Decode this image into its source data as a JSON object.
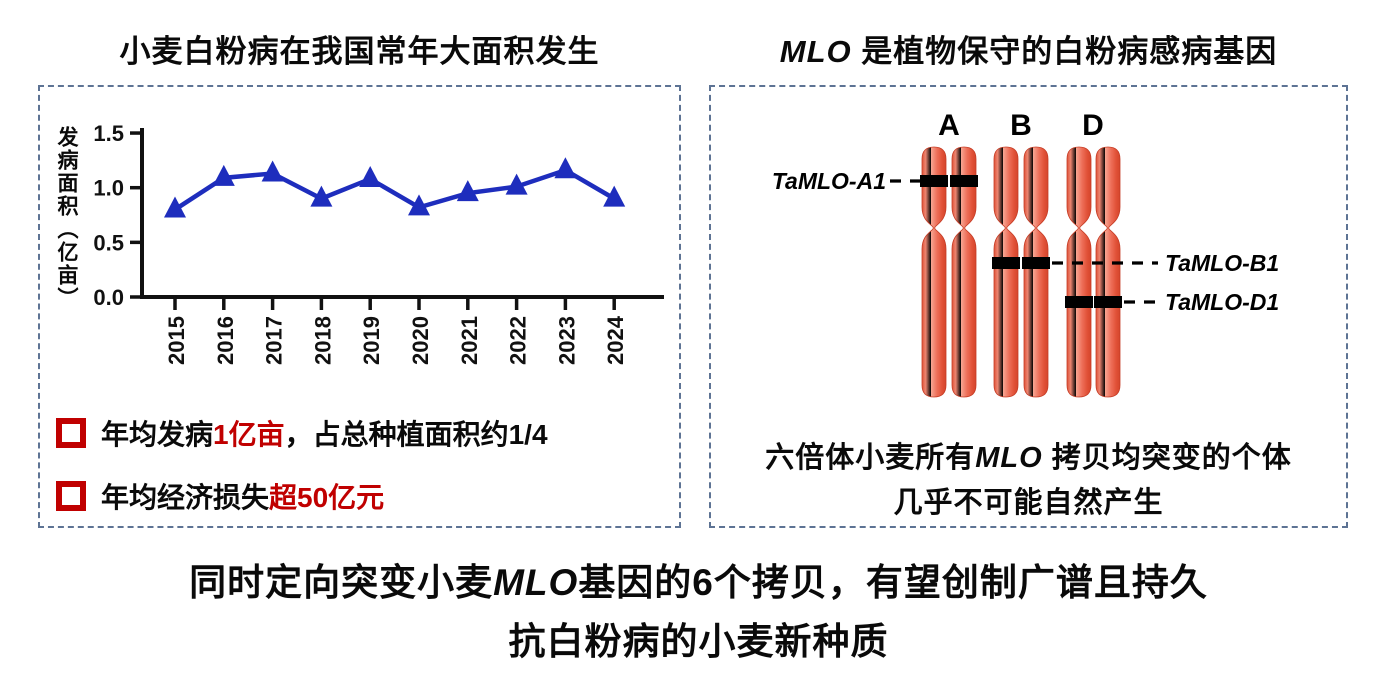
{
  "left_panel": {
    "title": "小麦白粉病在我国常年大面积发生",
    "bullets": [
      {
        "pre": "年均发病",
        "em": "1亿亩",
        "post": "，占总种植面积约1/4"
      },
      {
        "pre": "年均经济损失",
        "em": "超50亿元",
        "post": ""
      }
    ]
  },
  "right_panel": {
    "title_em": "MLO",
    "title_rest": " 是植物保守的白粉病感病基因",
    "chromosome_groups": [
      "A",
      "B",
      "D"
    ],
    "gene_labels": [
      "TaMLO-A1",
      "TaMLO-B1",
      "TaMLO-D1"
    ],
    "caption": {
      "line1_pre": "六倍体小麦所有",
      "line1_em": "MLO",
      "line1_post": " 拷贝均突变的个体",
      "line2": "几乎不可能自然产生"
    }
  },
  "footer": {
    "line1_pre": "同时定向突变小麦",
    "line1_em": "MLO",
    "line1_post": "基因的6个拷贝，有望创制广谱且持久",
    "line2": "抗白粉病的小麦新种质"
  },
  "colors": {
    "line_blue": "#1e2dbd",
    "accent_red": "#c00000",
    "chromosome_red": "#ea5b42",
    "border_slate": "#5d7394",
    "axis_black": "#111111"
  },
  "chart_data": {
    "type": "line",
    "x": [
      2015,
      2016,
      2017,
      2018,
      2019,
      2020,
      2021,
      2022,
      2023,
      2024
    ],
    "values": [
      0.8,
      1.09,
      1.13,
      0.9,
      1.08,
      0.82,
      0.95,
      1.01,
      1.16,
      0.9
    ],
    "title": "",
    "xlabel": "",
    "ylabel": "发病面积（亿亩）",
    "ylim": [
      0,
      1.5
    ],
    "yticks": [
      0.0,
      0.5,
      1.0,
      1.5
    ],
    "marker": "triangle",
    "legend": null,
    "grid": false
  }
}
